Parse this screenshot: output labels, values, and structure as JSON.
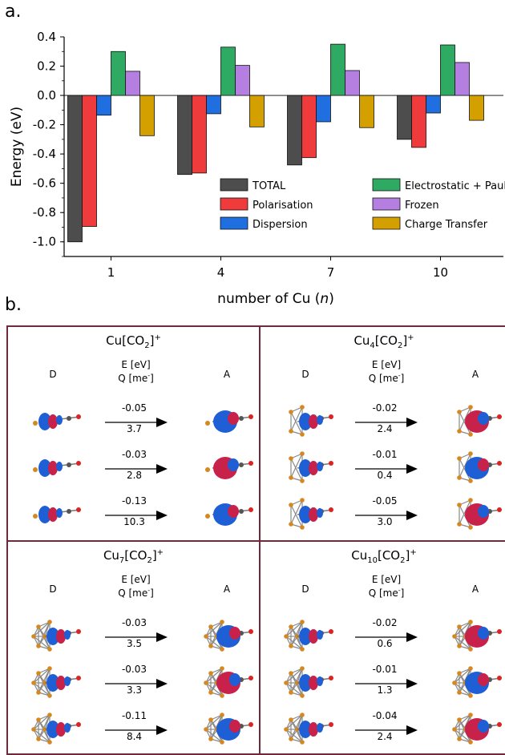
{
  "panel_a_label": "a.",
  "panel_b_label": "b.",
  "chart_data": {
    "type": "bar",
    "xlabel": "number of Cu (",
    "xlabel_italic": "n",
    "xlabel_end": ")",
    "ylabel": "Energy (eV)",
    "categories": [
      "1",
      "4",
      "7",
      "10"
    ],
    "ylim": [
      -1.1,
      0.4
    ],
    "yticks": [
      "0.4",
      "0.2",
      "0.0",
      "-0.2",
      "-0.4",
      "-0.6",
      "-0.8",
      "-1.0"
    ],
    "ytick_values": [
      0.4,
      0.2,
      0.0,
      -0.2,
      -0.4,
      -0.6,
      -0.8,
      -1.0
    ],
    "legend_position": "bottom-right",
    "series": [
      {
        "name": "TOTAL",
        "color": "#4d4d4d",
        "values": [
          -1.0,
          -0.54,
          -0.475,
          -0.3
        ]
      },
      {
        "name": "Polarisation",
        "color": "#ef3b3b",
        "values": [
          -0.895,
          -0.53,
          -0.425,
          -0.355
        ]
      },
      {
        "name": "Dispersion",
        "color": "#1f6fe0",
        "values": [
          -0.135,
          -0.125,
          -0.18,
          -0.12
        ]
      },
      {
        "name": "Electrostatic + Pauli",
        "color": "#2eaa63",
        "values": [
          0.3,
          0.33,
          0.35,
          0.345
        ]
      },
      {
        "name": "Frozen",
        "color": "#b47fe0",
        "values": [
          0.165,
          0.205,
          0.17,
          0.225
        ]
      },
      {
        "name": "Charge Transfer",
        "color": "#d4a000",
        "values": [
          -0.275,
          -0.215,
          -0.22,
          -0.17
        ]
      }
    ]
  },
  "panel_b": {
    "col_d": "D",
    "col_a": "A",
    "e_label": "E [eV]",
    "q_label": "Q [me",
    "q_sup": "-",
    "q_end": "]",
    "cells": [
      {
        "pre": "Cu[CO",
        "sub1": "",
        "mid": "",
        "sub2": "2",
        "post": "]",
        "sup": "+",
        "rows": [
          {
            "e": "-0.05",
            "q": "3.7"
          },
          {
            "e": "-0.03",
            "q": "2.8"
          },
          {
            "e": "-0.13",
            "q": "10.3"
          }
        ]
      },
      {
        "pre": "Cu",
        "sub1": "4",
        "mid": "[CO",
        "sub2": "2",
        "post": "]",
        "sup": "+",
        "rows": [
          {
            "e": "-0.02",
            "q": "2.4"
          },
          {
            "e": "-0.01",
            "q": "0.4"
          },
          {
            "e": "-0.05",
            "q": "3.0"
          }
        ]
      },
      {
        "pre": "Cu",
        "sub1": "7",
        "mid": "[CO",
        "sub2": "2",
        "post": "]",
        "sup": "+",
        "rows": [
          {
            "e": "-0.03",
            "q": "3.5"
          },
          {
            "e": "-0.03",
            "q": "3.3"
          },
          {
            "e": "-0.11",
            "q": "8.4"
          }
        ]
      },
      {
        "pre": "Cu",
        "sub1": "10",
        "mid": "[CO",
        "sub2": "2",
        "post": "]",
        "sup": "+",
        "rows": [
          {
            "e": "-0.02",
            "q": "0.6"
          },
          {
            "e": "-0.01",
            "q": "1.3"
          },
          {
            "e": "-0.04",
            "q": "2.4"
          }
        ]
      }
    ]
  }
}
